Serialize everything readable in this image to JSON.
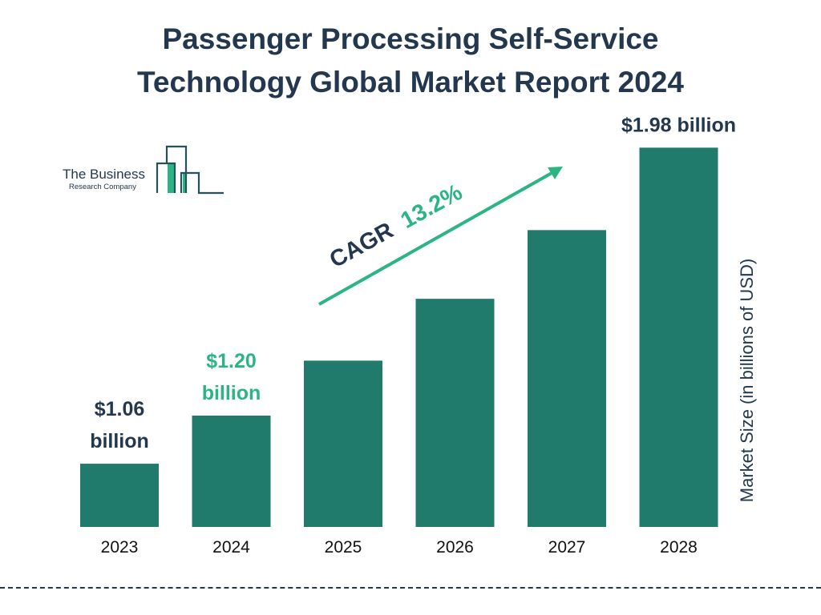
{
  "chart_data": {
    "type": "bar",
    "title": "Passenger Processing Self-Service Technology Global Market Report 2024",
    "title_lines": [
      "Passenger Processing Self-Service",
      "Technology Global Market Report 2024"
    ],
    "categories": [
      "2023",
      "2024",
      "2025",
      "2026",
      "2027",
      "2028"
    ],
    "values": [
      1.06,
      1.2,
      1.36,
      1.54,
      1.74,
      1.98
    ],
    "data_labels": [
      {
        "index": 0,
        "lines": [
          "$1.06",
          "billion"
        ],
        "color": "#23384f"
      },
      {
        "index": 1,
        "lines": [
          "$1.20",
          "billion"
        ],
        "color": "#2bb583"
      },
      {
        "index": 5,
        "lines": [
          "$1.98 billion"
        ],
        "color": "#23384f"
      }
    ],
    "ylabel": "Market Size (in billions of USD)",
    "xlabel": "",
    "grid": false,
    "bar_color": "#217b6c",
    "annotation": {
      "label": "CAGR",
      "value": "13.2%",
      "label_color": "#23384f",
      "value_color": "#2bb583",
      "arrow_color": "#2bb583"
    }
  },
  "logo": {
    "line1": "The Business",
    "line2": "Research Company"
  }
}
